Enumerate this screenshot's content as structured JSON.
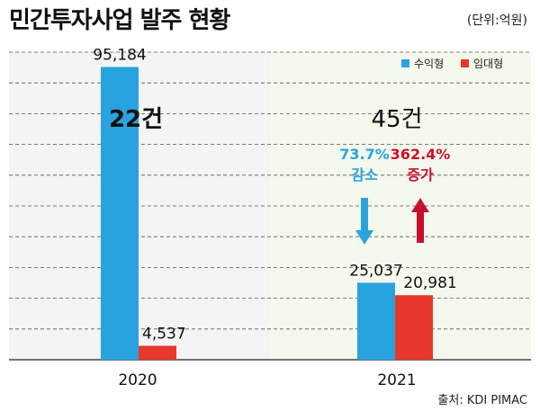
{
  "title": "민간투자사업 발주 현황",
  "unit": "(단위:억원)",
  "source": "출처: KDI PIMAC",
  "colors": {
    "profit": "#29a3e0",
    "lease": "#e8382d",
    "up": "#c8102e",
    "panel_left": "#f4f4f4",
    "panel_right": "#f5f8ec"
  },
  "chart_data": {
    "type": "bar",
    "title": "민간투자사업 발주 현황",
    "categories": [
      "2020",
      "2021"
    ],
    "series": [
      {
        "name": "수익형",
        "values": [
          95184,
          25037
        ],
        "labels": [
          "95,184",
          "25,037"
        ]
      },
      {
        "name": "임대형",
        "values": [
          4537,
          20981
        ],
        "labels": [
          "4,537",
          "20,981"
        ]
      }
    ],
    "ylim": [
      0,
      100000
    ],
    "grid": true,
    "legend": "top-right",
    "ylabel": "",
    "xlabel": ""
  },
  "annotations": {
    "count_2020": "22건",
    "count_2021": "45건",
    "profit_change_pct": "73.7%",
    "profit_change_word": "감소",
    "lease_change_pct": "362.4%",
    "lease_change_word": "증가"
  }
}
